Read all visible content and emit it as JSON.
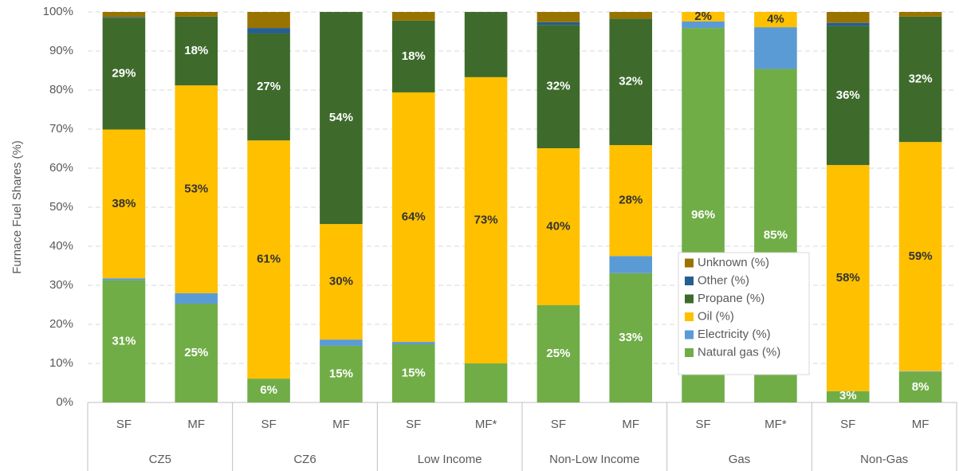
{
  "chart_data": {
    "type": "stacked_bar",
    "y_label": "Furnace Fuel Shares (%)",
    "categories": [
      "SF",
      "MF",
      "SF",
      "MF",
      "SF",
      "MF*",
      "SF",
      "MF",
      "SF",
      "MF*",
      "SF",
      "MF"
    ],
    "groups": [
      "CZ5",
      "CZ6",
      "Low Income",
      "Non-Low Income",
      "Gas",
      "Non-Gas"
    ],
    "ylim": [
      0,
      100
    ],
    "yticks": [
      {
        "value": 0,
        "label": "0%"
      },
      {
        "value": 10,
        "label": "10%"
      },
      {
        "value": 20,
        "label": "20%"
      },
      {
        "value": 30,
        "label": "30%"
      },
      {
        "value": 40,
        "label": "40%"
      },
      {
        "value": 50,
        "label": "50%"
      },
      {
        "value": 60,
        "label": "60%"
      },
      {
        "value": 70,
        "label": "70%"
      },
      {
        "value": 80,
        "label": "80%"
      },
      {
        "value": 90,
        "label": "90%"
      },
      {
        "value": 100,
        "label": "100%"
      }
    ],
    "grid": true,
    "legend": "inside-right",
    "series": [
      {
        "name": "Natural gas (%)",
        "color": "#70ad47",
        "label_color": "#ffffff",
        "values": [
          31.3,
          25.3,
          6.1,
          14.5,
          14.9,
          10,
          24.9,
          33.1,
          95.9,
          85.4,
          2.9,
          7.8
        ],
        "value_labels": [
          "31%",
          "25%",
          "6%",
          "15%",
          "15%",
          null,
          "25%",
          "33%",
          "96%",
          "85%",
          "3%",
          "8%"
        ]
      },
      {
        "name": "Electricity (%)",
        "color": "#5b9bd5",
        "label_color": "#ffffff",
        "values": [
          0.5,
          2.7,
          0,
          1.6,
          0.6,
          0,
          0,
          4.4,
          1.7,
          10.7,
          0,
          0.2
        ],
        "value_labels": [
          null,
          null,
          null,
          null,
          null,
          null,
          null,
          null,
          null,
          null,
          null,
          null
        ]
      },
      {
        "name": "Oil (%)",
        "color": "#ffc000",
        "label_color": "#333333",
        "values": [
          38.1,
          53.2,
          61.0,
          29.6,
          63.9,
          73.3,
          40.2,
          28.4,
          2.4,
          3.9,
          57.9,
          58.7
        ],
        "value_labels": [
          "38%",
          "53%",
          "61%",
          "30%",
          "64%",
          "73%",
          "40%",
          "28%",
          "2%",
          "4%",
          "58%",
          "59%"
        ]
      },
      {
        "name": "Propane (%)",
        "color": "#3e6b2b",
        "label_color": "#ffffff",
        "values": [
          28.6,
          17.6,
          27.4,
          54.3,
          18.4,
          16.7,
          31.6,
          32.4,
          0,
          0,
          35.6,
          32.1
        ],
        "value_labels": [
          "29%",
          "18%",
          "27%",
          "54%",
          "18%",
          null,
          "32%",
          "32%",
          null,
          null,
          "36%",
          "32%"
        ]
      },
      {
        "name": "Other (%)",
        "color": "#255e91",
        "label_color": "#ffffff",
        "values": [
          0.2,
          0,
          1.4,
          0,
          0,
          0,
          0.7,
          0,
          0,
          0,
          0.8,
          0
        ],
        "value_labels": [
          null,
          null,
          null,
          null,
          null,
          null,
          null,
          null,
          null,
          null,
          null,
          null
        ]
      },
      {
        "name": "Unknown (%)",
        "color": "#997300",
        "label_color": "#ffffff",
        "values": [
          1.3,
          1.2,
          4.1,
          0,
          2.2,
          0,
          2.6,
          1.7,
          0,
          0,
          2.8,
          1.2
        ],
        "value_labels": [
          null,
          null,
          null,
          null,
          null,
          null,
          null,
          null,
          null,
          null,
          null,
          null
        ]
      }
    ]
  }
}
